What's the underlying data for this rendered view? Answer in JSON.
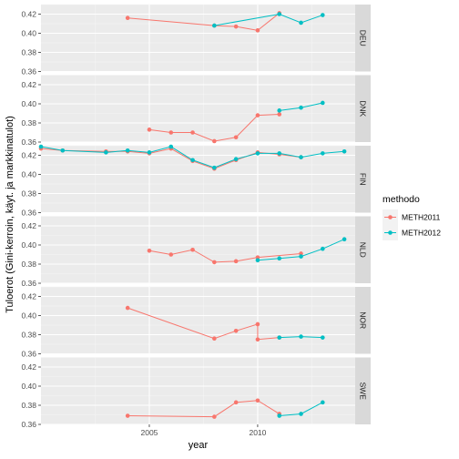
{
  "chart_data": {
    "type": "line",
    "xlabel": "year",
    "ylabel": "Tuloerot (Gini-kerroin, käyt. ja markkinatulot)",
    "xlim": [
      2000,
      2014.5
    ],
    "ylim": [
      0.36,
      0.43
    ],
    "x_ticks": [
      2005,
      2010
    ],
    "x_tick_labels": [
      "2005",
      "2010"
    ],
    "y_ticks": [
      0.36,
      0.38,
      0.4,
      0.42
    ],
    "y_tick_labels": [
      "0.36",
      "0.38",
      "0.40",
      "0.42"
    ],
    "grid": true,
    "legend": {
      "title": "methodo",
      "position": "right",
      "entries": [
        {
          "label": "METH2011",
          "color": "#F8766D"
        },
        {
          "label": "METH2012",
          "color": "#00BFC4"
        }
      ]
    },
    "panels": [
      {
        "name": "DEU",
        "series": [
          {
            "name": "METH2011",
            "color": "#F8766D",
            "x": [
              2004,
              2008,
              2009,
              2010,
              2011
            ],
            "y": [
              0.416,
              0.408,
              0.407,
              0.403,
              0.421
            ]
          },
          {
            "name": "METH2012",
            "color": "#00BFC4",
            "x": [
              2008,
              2011,
              2012,
              2013
            ],
            "y": [
              0.408,
              0.42,
              0.411,
              0.419
            ]
          }
        ]
      },
      {
        "name": "DNK",
        "series": [
          {
            "name": "METH2011",
            "color": "#F8766D",
            "x": [
              2005,
              2006,
              2007,
              2008,
              2009,
              2010,
              2011
            ],
            "y": [
              0.373,
              0.37,
              0.37,
              0.361,
              0.365,
              0.388,
              0.389
            ]
          },
          {
            "name": "METH2012",
            "color": "#00BFC4",
            "x": [
              2011,
              2012,
              2013
            ],
            "y": [
              0.393,
              0.396,
              0.401
            ]
          }
        ]
      },
      {
        "name": "FIN",
        "series": [
          {
            "name": "METH2011",
            "color": "#F8766D",
            "x": [
              2000,
              2001,
              2003,
              2004,
              2005,
              2006,
              2007,
              2008,
              2009,
              2010,
              2011,
              2012
            ],
            "y": [
              0.427,
              0.425,
              0.424,
              0.424,
              0.422,
              0.427,
              0.414,
              0.406,
              0.415,
              0.423,
              0.421,
              0.418
            ]
          },
          {
            "name": "METH2012",
            "color": "#00BFC4",
            "x": [
              2000,
              2001,
              2003,
              2004,
              2005,
              2006,
              2007,
              2008,
              2009,
              2010,
              2011,
              2012,
              2013,
              2014
            ],
            "y": [
              0.429,
              0.425,
              0.423,
              0.425,
              0.423,
              0.429,
              0.415,
              0.407,
              0.416,
              0.422,
              0.422,
              0.418,
              0.422,
              0.424
            ]
          }
        ]
      },
      {
        "name": "NLD",
        "series": [
          {
            "name": "METH2011",
            "color": "#F8766D",
            "x": [
              2005,
              2006,
              2007,
              2008,
              2009,
              2010,
              2012
            ],
            "y": [
              0.394,
              0.39,
              0.395,
              0.382,
              0.383,
              0.387,
              0.391
            ]
          },
          {
            "name": "METH2012",
            "color": "#00BFC4",
            "x": [
              2010,
              2011,
              2012,
              2013,
              2014
            ],
            "y": [
              0.384,
              0.386,
              0.388,
              0.396,
              0.406
            ]
          }
        ]
      },
      {
        "name": "NOR",
        "series": [
          {
            "name": "METH2011",
            "color": "#F8766D",
            "x": [
              2004,
              2008,
              2009,
              2010,
              2010,
              2011
            ],
            "y": [
              0.408,
              0.376,
              0.384,
              0.391,
              0.375,
              0.377
            ]
          },
          {
            "name": "METH2012",
            "color": "#00BFC4",
            "x": [
              2011,
              2012,
              2013
            ],
            "y": [
              0.377,
              0.378,
              0.377
            ]
          }
        ]
      },
      {
        "name": "SWE",
        "series": [
          {
            "name": "METH2011",
            "color": "#F8766D",
            "x": [
              2004,
              2008,
              2009,
              2010,
              2011
            ],
            "y": [
              0.369,
              0.368,
              0.383,
              0.385,
              0.371
            ]
          },
          {
            "name": "METH2012",
            "color": "#00BFC4",
            "x": [
              2011,
              2012,
              2013
            ],
            "y": [
              0.369,
              0.371,
              0.383
            ]
          }
        ]
      }
    ]
  }
}
